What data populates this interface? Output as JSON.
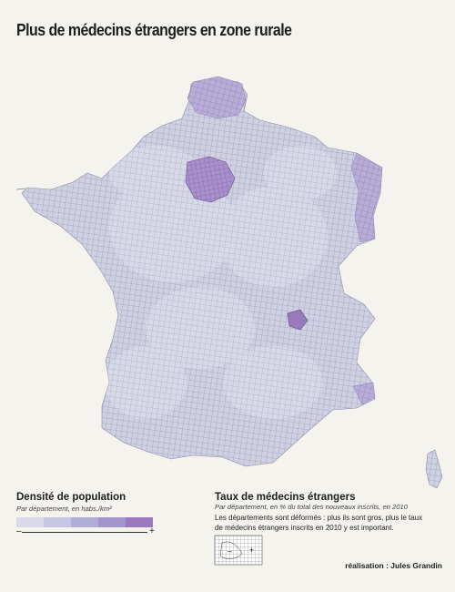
{
  "title": "Plus de médecins étrangers en zone rurale",
  "legend_density": {
    "title": "Densité de population",
    "subtitle": "Par département, en habs./km²",
    "colors": [
      "#dad9ea",
      "#c7c5e2",
      "#b2add6",
      "#a195cb",
      "#9a78bc"
    ],
    "minus": "–",
    "plus": "+"
  },
  "legend_rate": {
    "title": "Taux de médecins étrangers",
    "subtitle": "Par département, en % du total des nouveaux inscrits, en 2010",
    "text": "Les départements sont déformés : plus ils sont gros, plus le taux de médecins étrangers inscrits en 2010 y est important.",
    "minus": "–",
    "plus": "+"
  },
  "credit": "réalisation : Jules Grandin",
  "colors": {
    "background": "#f5f3ed",
    "map_base": "#cfcfe2",
    "map_grid": "#5c5c70",
    "dense_dark": "#9a78bc",
    "dense_mid": "#ab98cf"
  }
}
